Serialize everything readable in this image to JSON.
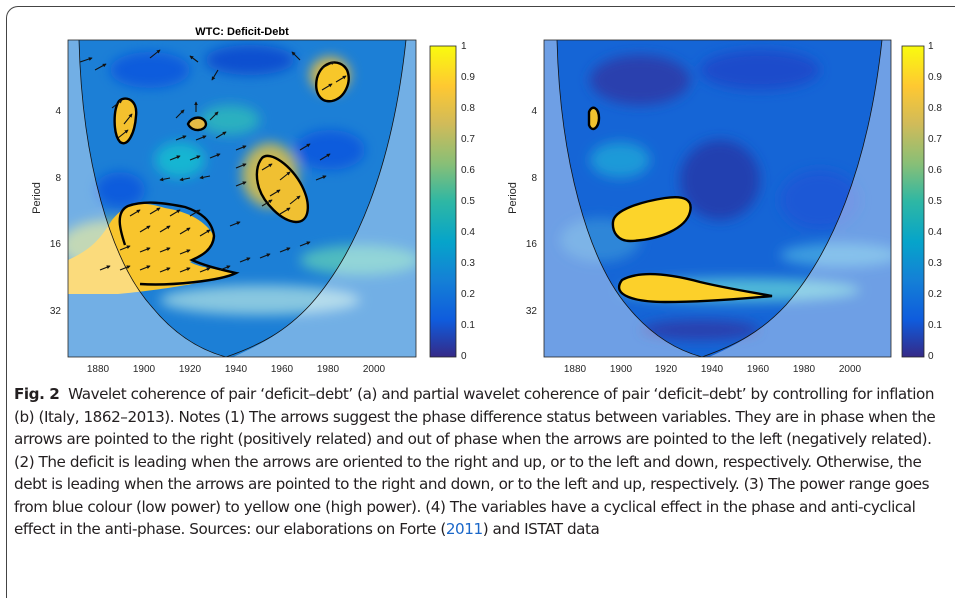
{
  "figure": {
    "panel_a": {
      "title": "WTC: Deficit-Debt",
      "ylabel": "Period",
      "yticks": [
        "4",
        "8",
        "16",
        "32"
      ],
      "xticks": [
        "1880",
        "1900",
        "1920",
        "1940",
        "1960",
        "1980",
        "2000"
      ],
      "colorbar_ticks": [
        "0",
        "0.1",
        "0.2",
        "0.3",
        "0.4",
        "0.5",
        "0.6",
        "0.7",
        "0.8",
        "0.9",
        "1"
      ]
    },
    "panel_b": {
      "title": "",
      "ylabel": "Period",
      "yticks": [
        "4",
        "8",
        "16",
        "32"
      ],
      "xticks": [
        "1880",
        "1900",
        "1920",
        "1940",
        "1960",
        "1980",
        "2000"
      ],
      "colorbar_ticks": [
        "0",
        "0.1",
        "0.2",
        "0.3",
        "0.4",
        "0.5",
        "0.6",
        "0.7",
        "0.8",
        "0.9",
        "1"
      ]
    },
    "colormap": [
      "#352a87",
      "#0f5cdd",
      "#1481d6",
      "#06a4ca",
      "#2eb7a4",
      "#87bf77",
      "#d1bb59",
      "#fec832",
      "#f9fb0e"
    ]
  },
  "caption": {
    "label": "Fig. 2",
    "text_before_cite": "Wavelet coherence of pair ‘deficit–debt’ (a) and partial wavelet coherence of pair ‘deficit–debt’ by controlling for inflation (b) (Italy, 1862–2013). Notes (1) The arrows suggest the phase difference status between variables. They are in phase when the arrows are pointed to the right (positively related) and out of phase when the arrows are pointed to the left (negatively related). (2) The deficit is leading when the arrows are oriented to the right and up, or to the left and down, respectively. Otherwise, the debt is leading when the arrows are pointed to the right and down, or to the left and up, respectively. (3) The power range goes from blue colour (low power) to yellow one (high power). (4) The variables have a cyclical effect in the phase and anti-cyclical effect in the anti-phase. Sources: our elaborations on Forte (",
    "cite": "2011",
    "text_after_cite": ") and ISTAT data"
  }
}
